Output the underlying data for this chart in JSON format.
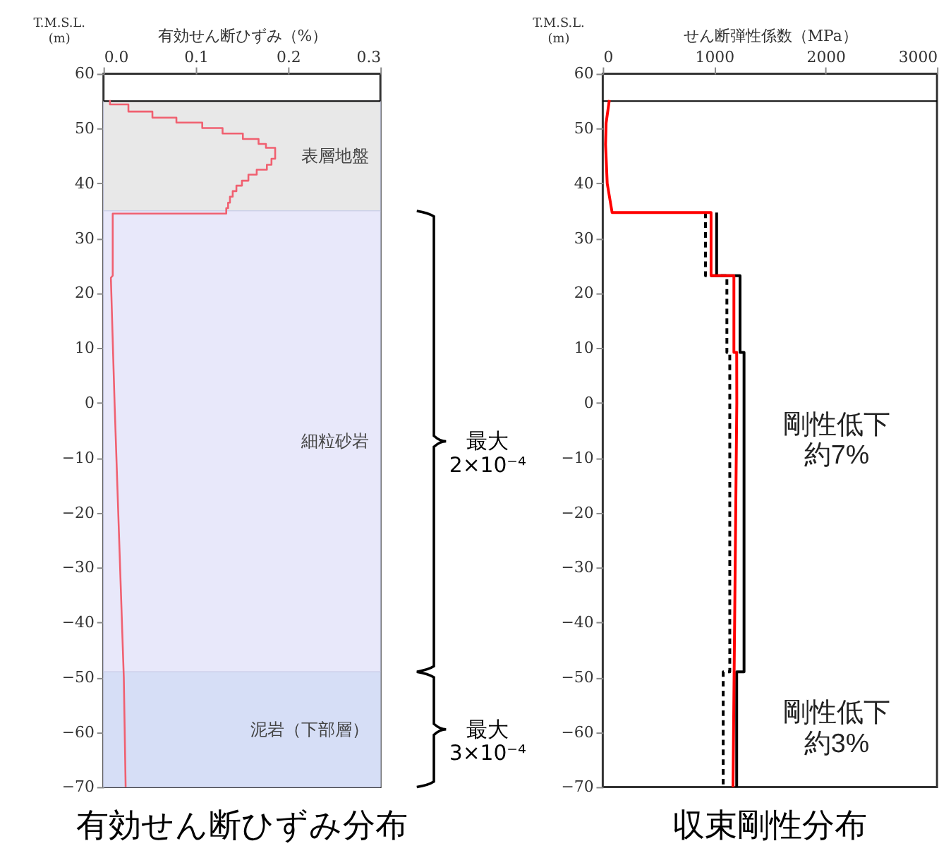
{
  "chart_data": [
    {
      "type": "line",
      "title": "有効せん断ひずみ分布",
      "xlabel": "有効せん断ひずみ（%）",
      "ylabel": "T.M.S.L.\n(m)",
      "xlim": [
        0,
        0.3
      ],
      "ylim": [
        -70,
        60
      ],
      "xticks": [
        {
          "value": 0,
          "label": "0.0"
        },
        {
          "value": 0.1,
          "label": "0.1"
        },
        {
          "value": 0.2,
          "label": "0.2"
        },
        {
          "value": 0.3,
          "label": "0.3"
        }
      ],
      "yticks": [
        60,
        50,
        40,
        30,
        20,
        10,
        0,
        -10,
        -20,
        -30,
        -40,
        -50,
        -60,
        -70
      ],
      "series": [
        {
          "color": "#f06070",
          "line_style": "solid",
          "x": [
            0.007,
            0.007,
            0.027,
            0.027,
            0.053,
            0.053,
            0.079,
            0.079,
            0.107,
            0.107,
            0.129,
            0.129,
            0.151,
            0.151,
            0.168,
            0.168,
            0.176,
            0.176,
            0.186,
            0.186,
            0.182,
            0.182,
            0.177,
            0.177,
            0.166,
            0.166,
            0.157,
            0.157,
            0.15,
            0.15,
            0.144,
            0.144,
            0.14,
            0.14,
            0.137,
            0.137,
            0.135,
            0.135,
            0.133,
            0.133,
            0.01,
            0.01,
            0.008,
            0.012,
            0.017,
            0.022,
            0.024
          ],
          "values": [
            55.2,
            54.4,
            54.4,
            53.1,
            53.1,
            52.0,
            52.0,
            51.1,
            51.1,
            50.1,
            50.1,
            49.1,
            49.1,
            48.1,
            48.1,
            47.2,
            47.2,
            46.5,
            46.5,
            44.5,
            44.5,
            43.4,
            43.4,
            42.5,
            42.5,
            41.6,
            41.6,
            40.5,
            40.5,
            39.6,
            39.6,
            38.6,
            38.6,
            37.6,
            37.6,
            36.5,
            36.5,
            35.5,
            35.5,
            34.5,
            34.5,
            23.2,
            22.8,
            0,
            -25,
            -50,
            -70
          ]
        }
      ],
      "ref_lines": [
        {
          "axis": "y",
          "value": 55,
          "color": "#000000"
        }
      ],
      "bands": [
        {
          "axis": "y",
          "from": 35,
          "to": 55,
          "label": "表層地盤",
          "color": "#e8e8e8"
        },
        {
          "axis": "y",
          "from": -49,
          "to": 35,
          "label": "細粒砂岩",
          "color": "#e8e8fa"
        },
        {
          "axis": "y",
          "from": -70,
          "to": -49,
          "label": "泥岩（下部層）",
          "color": "#d6def6"
        }
      ],
      "annotations": [
        "最大\n2×10⁻⁴",
        "最大\n3×10⁻⁴"
      ],
      "marker": "none",
      "grid": false
    },
    {
      "type": "line",
      "title": "収束剛性分布",
      "xlabel": "せん断弾性係数（MPa）",
      "ylabel": "T.M.S.L.\n(m)",
      "xlim": [
        0,
        3000
      ],
      "ylim": [
        -70,
        60
      ],
      "xticks": [
        {
          "value": 0,
          "label": "0"
        },
        {
          "value": 1000,
          "label": "1000"
        },
        {
          "value": 2000,
          "label": "2000"
        },
        {
          "value": 3000,
          "label": "3000"
        }
      ],
      "yticks": [
        60,
        50,
        40,
        30,
        20,
        10,
        0,
        -10,
        -20,
        -30,
        -40,
        -50,
        -60,
        -70
      ],
      "series": [
        {
          "color": "#000000",
          "line_style": "dashed",
          "x": [
            922,
            922,
            1114,
            1114,
            1140,
            1140,
            1081,
            1081
          ],
          "values": [
            34.7,
            23.2,
            23.2,
            9.2,
            9.2,
            -49,
            -49,
            -70
          ]
        },
        {
          "color": "#000000",
          "line_style": "solid",
          "x": [
            1022,
            1022,
            1232,
            1232,
            1268,
            1268,
            1202,
            1202
          ],
          "values": [
            34.7,
            23.2,
            23.2,
            9.2,
            9.2,
            -49,
            -49,
            -70
          ]
        },
        {
          "color": "#ff0000",
          "line_style": "solid",
          "x": [
            59,
            30,
            25,
            40,
            84,
            972,
            972,
            1177,
            1177,
            1202,
            1203,
            1169
          ],
          "values": [
            55.2,
            51,
            47.1,
            40,
            34.7,
            34.7,
            23.2,
            23.2,
            9.2,
            9.2,
            0,
            -70
          ]
        }
      ],
      "ref_lines": [
        {
          "axis": "y",
          "value": 55,
          "color": "#000000"
        }
      ],
      "annotations": [
        "剛性低下",
        "約7%",
        "剛性低下",
        "約3%"
      ],
      "marker": "none",
      "grid": false
    }
  ]
}
